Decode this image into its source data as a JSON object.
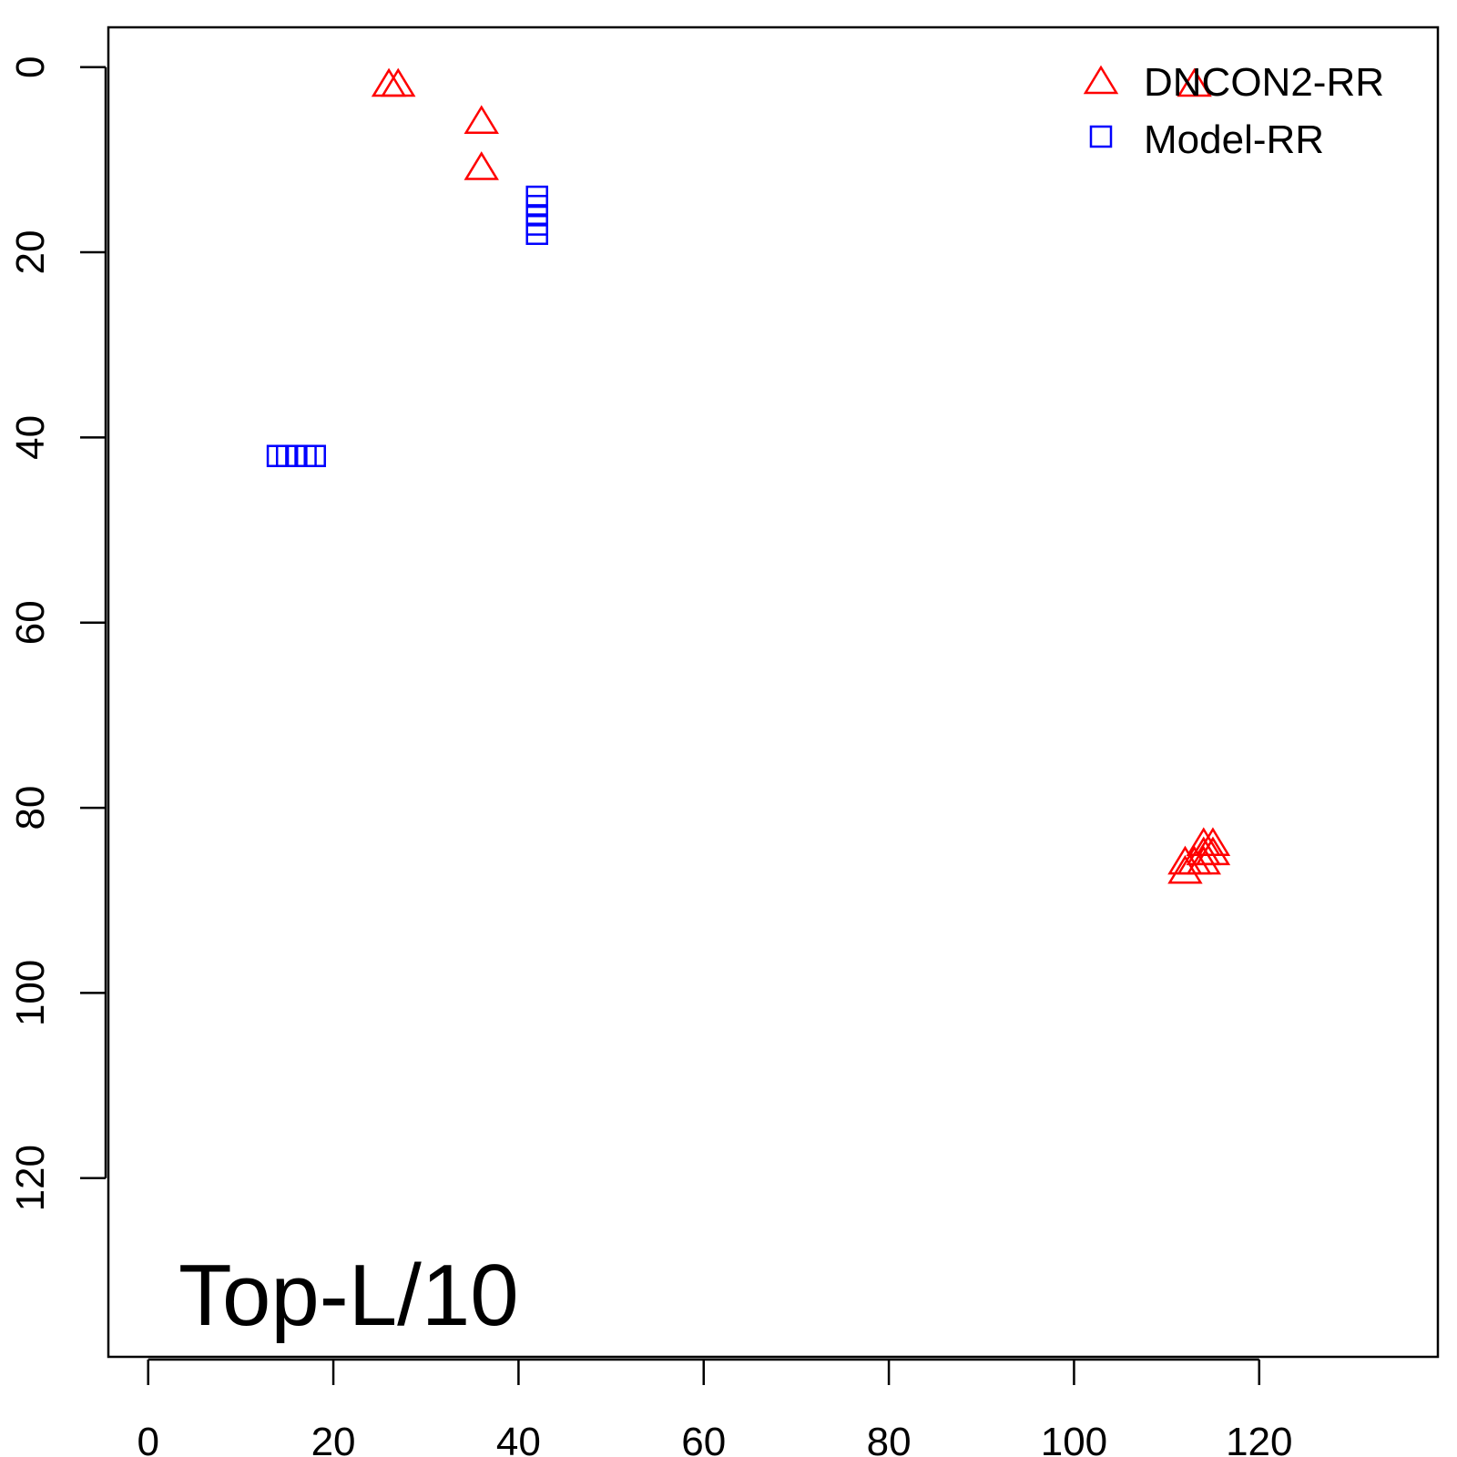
{
  "chart_data": {
    "type": "scatter",
    "title": "",
    "xlabel": "",
    "ylabel": "",
    "xlim": [
      -4.3,
      139.3
    ],
    "ylim": [
      -4.3,
      139.3
    ],
    "y_reversed": true,
    "x_ticks": [
      0,
      20,
      40,
      60,
      80,
      100,
      120
    ],
    "y_ticks": [
      0,
      20,
      40,
      60,
      80,
      100,
      120
    ],
    "x_tick_labels": [
      "0",
      "20",
      "40",
      "60",
      "80",
      "100",
      "120"
    ],
    "y_tick_labels": [
      "0",
      "20",
      "40",
      "60",
      "80",
      "100",
      "120"
    ],
    "annotation": "Top-L/10",
    "grid": false,
    "legend_position": "top-right",
    "series": [
      {
        "name": "DNCON2-RR",
        "marker": "triangle",
        "color": "#ff0000",
        "points": [
          [
            26,
            2
          ],
          [
            27,
            2
          ],
          [
            36,
            6
          ],
          [
            36,
            11
          ],
          [
            113,
            2
          ],
          [
            112,
            86
          ],
          [
            112,
            87
          ],
          [
            113,
            86
          ],
          [
            114,
            85
          ],
          [
            114,
            86
          ],
          [
            114,
            84
          ],
          [
            115,
            84
          ],
          [
            115,
            85
          ]
        ]
      },
      {
        "name": "Model-RR",
        "marker": "square",
        "color": "#0000ff",
        "points": [
          [
            42,
            14
          ],
          [
            42,
            15
          ],
          [
            42,
            16
          ],
          [
            42,
            17
          ],
          [
            42,
            18
          ],
          [
            14,
            42
          ],
          [
            15,
            42
          ],
          [
            16,
            42
          ],
          [
            17,
            42
          ],
          [
            18,
            42
          ]
        ]
      }
    ]
  }
}
